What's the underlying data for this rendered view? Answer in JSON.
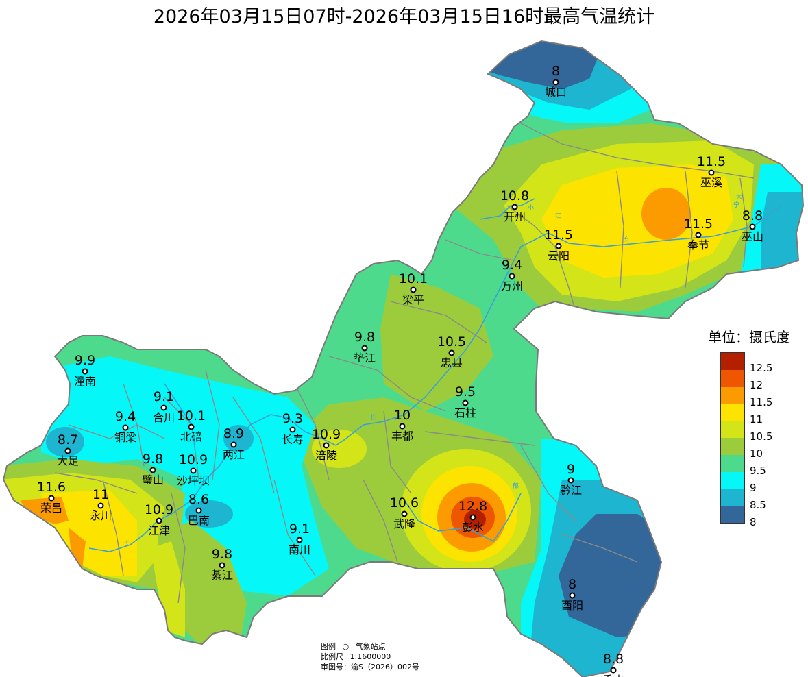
{
  "title": "2026年03月15日07时-2026年03月15日16时最高气温统计",
  "legend": {
    "title": "单位：摄氏度",
    "colors": [
      "#b22000",
      "#ee5600",
      "#fb9b00",
      "#fde400",
      "#d3e518",
      "#9ccc3c",
      "#4dda8c",
      "#06f7f7",
      "#1db5cf",
      "#336699"
    ],
    "ticks": [
      "12.5",
      "12",
      "11.5",
      "11",
      "10.5",
      "10",
      "9.5",
      "9",
      "8.5",
      "8"
    ]
  },
  "stations": [
    {
      "name": "城口",
      "value": "8"
    },
    {
      "name": "巫溪",
      "value": "11.5"
    },
    {
      "name": "开州",
      "value": "10.8"
    },
    {
      "name": "奉节",
      "value": "11.5"
    },
    {
      "name": "巫山",
      "value": "8.8"
    },
    {
      "name": "云阳",
      "value": "11.5"
    },
    {
      "name": "万州",
      "value": "9.4"
    },
    {
      "name": "梁平",
      "value": "10.1"
    },
    {
      "name": "垫江",
      "value": "9.8"
    },
    {
      "name": "忠县",
      "value": "10.5"
    },
    {
      "name": "潼南",
      "value": "9.9"
    },
    {
      "name": "石柱",
      "value": "9.5"
    },
    {
      "name": "合川",
      "value": "9.1"
    },
    {
      "name": "铜梁",
      "value": "9.4"
    },
    {
      "name": "北碚",
      "value": "10.1"
    },
    {
      "name": "两江",
      "value": "8.9"
    },
    {
      "name": "长寿",
      "value": "9.3"
    },
    {
      "name": "丰都",
      "value": "10"
    },
    {
      "name": "大足",
      "value": "8.7"
    },
    {
      "name": "涪陵",
      "value": "10.9"
    },
    {
      "name": "璧山",
      "value": "9.8"
    },
    {
      "name": "沙坪坝",
      "value": "10.9"
    },
    {
      "name": "黔江",
      "value": "9"
    },
    {
      "name": "荣昌",
      "value": "11.6"
    },
    {
      "name": "永川",
      "value": "11"
    },
    {
      "name": "巴南",
      "value": "8.6"
    },
    {
      "name": "江津",
      "value": "10.9"
    },
    {
      "name": "武隆",
      "value": "10.6"
    },
    {
      "name": "彭水",
      "value": "12.8"
    },
    {
      "name": "南川",
      "value": "9.1"
    },
    {
      "name": "綦江",
      "value": "9.8"
    },
    {
      "name": "酉阳",
      "value": "8"
    },
    {
      "name": "秀山",
      "value": "8.8"
    }
  ],
  "map_info": {
    "legend_label": "图例",
    "station_label": "气象站点",
    "scale_label": "比例尺",
    "scale_value": "1:1600000",
    "review_label": "审图号：渝S（2026）002号"
  }
}
